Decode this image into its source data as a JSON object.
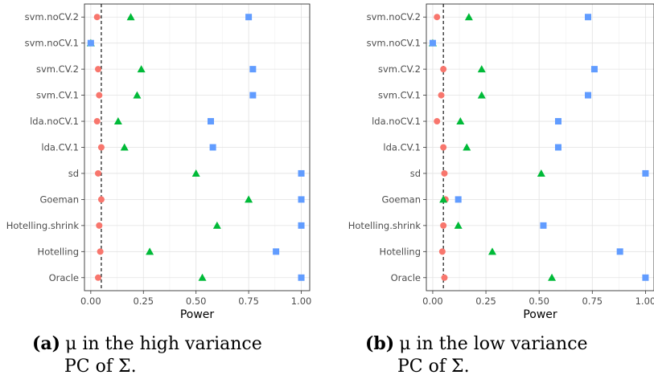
{
  "chart_data": [
    {
      "type": "scatter",
      "xlabel": "Power",
      "ylabel": "",
      "xlim": [
        -0.03,
        1.04
      ],
      "xticks": [
        "0.00",
        "0.25",
        "0.50",
        "0.75",
        "1.00"
      ],
      "reference_line": {
        "x": 0.05,
        "style": "dashed"
      },
      "grid": true,
      "categories": [
        "svm.noCV.2",
        "svm.noCV.1",
        "svm.CV.2",
        "svm.CV.1",
        "lda.noCV.1",
        "lda.CV.1",
        "sd",
        "Goeman",
        "Hotelling.shrink",
        "Hotelling",
        "Oracle"
      ],
      "series": [
        {
          "marker": "circle",
          "color": "#F8766D",
          "values": [
            0.03,
            0.0,
            0.035,
            0.04,
            0.03,
            0.05,
            0.035,
            0.05,
            0.04,
            0.045,
            0.035
          ]
        },
        {
          "marker": "triangle",
          "color": "#00BA38",
          "values": [
            0.19,
            0.0,
            0.24,
            0.22,
            0.13,
            0.16,
            0.5,
            0.75,
            0.6,
            0.28,
            0.53
          ]
        },
        {
          "marker": "square",
          "color": "#619CFF",
          "values": [
            0.75,
            0.0,
            0.77,
            0.77,
            0.57,
            0.58,
            1.0,
            1.0,
            1.0,
            0.88,
            1.0
          ]
        }
      ]
    },
    {
      "type": "scatter",
      "xlabel": "Power",
      "ylabel": "",
      "xlim": [
        -0.03,
        1.04
      ],
      "xticks": [
        "0.00",
        "0.25",
        "0.50",
        "0.75",
        "1.00"
      ],
      "reference_line": {
        "x": 0.05,
        "style": "dashed"
      },
      "grid": true,
      "categories": [
        "svm.noCV.2",
        "svm.noCV.1",
        "svm.CV.2",
        "svm.CV.1",
        "lda.noCV.1",
        "lda.CV.1",
        "sd",
        "Goeman",
        "Hotelling.shrink",
        "Hotelling",
        "Oracle"
      ],
      "series": [
        {
          "marker": "circle",
          "color": "#F8766D",
          "values": [
            0.02,
            0.0,
            0.05,
            0.04,
            0.02,
            0.05,
            0.055,
            0.06,
            0.05,
            0.045,
            0.055
          ]
        },
        {
          "marker": "triangle",
          "color": "#00BA38",
          "values": [
            0.17,
            0.0,
            0.23,
            0.23,
            0.13,
            0.16,
            0.51,
            0.05,
            0.12,
            0.28,
            0.56
          ]
        },
        {
          "marker": "square",
          "color": "#619CFF",
          "values": [
            0.73,
            0.0,
            0.76,
            0.73,
            0.59,
            0.59,
            1.0,
            0.12,
            0.52,
            0.88,
            1.0
          ]
        }
      ]
    }
  ],
  "captions": [
    {
      "tag": "(a)",
      "line1": "μ in the high variance",
      "line2": "PC of Σ."
    },
    {
      "tag": "(b)",
      "line1": "μ in the low variance",
      "line2": "PC of Σ."
    }
  ]
}
